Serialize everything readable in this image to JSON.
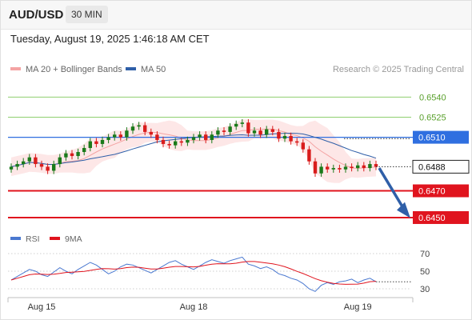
{
  "header": {
    "symbol": "AUD/USD",
    "timeframe": "30 MIN",
    "datetime": "Tuesday, August 19, 2025 1:46:18 AM CET"
  },
  "colors": {
    "bollinger": "#f4a3a3",
    "bollinger_fill": "#fde3e3",
    "ma50": "#2f5fa8",
    "resistance_green": "#8fcf6f",
    "resistance_label": "#5aa02c",
    "pivot_blue": "#2f6fe0",
    "support_red": "#e0141e",
    "current_price_box": "#222222",
    "candle_up": "#1a7a1a",
    "candle_down": "#d91c1c",
    "rsi": "#4a78d0",
    "rsi_ma": "#e0141e",
    "arrow": "#2f5fa8"
  },
  "chart_data": {
    "type": "candlestick",
    "legend": [
      {
        "label": "MA 20 + Bollinger Bands",
        "color": "#f4a3a3"
      },
      {
        "label": "MA 50",
        "color": "#2f5fa8"
      }
    ],
    "watermark": "Research © 2025 Trading Central",
    "ylim": [
      0.6444,
      0.6554
    ],
    "x_labels": [
      {
        "label": "Aug 15",
        "index": 5
      },
      {
        "label": "Aug 18",
        "index": 30
      },
      {
        "label": "Aug 19",
        "index": 57
      }
    ],
    "levels": [
      {
        "value": 0.654,
        "label": "0.6540",
        "kind": "resistance"
      },
      {
        "value": 0.6525,
        "label": "0.6525",
        "kind": "resistance"
      },
      {
        "value": 0.651,
        "label": "0.6510",
        "kind": "pivot"
      },
      {
        "value": 0.647,
        "label": "0.6470",
        "kind": "support"
      },
      {
        "value": 0.645,
        "label": "0.6450",
        "kind": "support"
      }
    ],
    "current_price": {
      "value": 0.6488,
      "label": "0.6488"
    },
    "forecast_arrow": {
      "from": 0.6487,
      "to": 0.6452
    },
    "close": [
      0.6488,
      0.649,
      0.6492,
      0.6495,
      0.649,
      0.6488,
      0.6485,
      0.649,
      0.6495,
      0.6498,
      0.6496,
      0.6499,
      0.6502,
      0.6507,
      0.6505,
      0.6508,
      0.651,
      0.6512,
      0.651,
      0.6515,
      0.6518,
      0.6519,
      0.6514,
      0.6512,
      0.6508,
      0.6505,
      0.6504,
      0.6507,
      0.6506,
      0.6508,
      0.651,
      0.6512,
      0.6508,
      0.6512,
      0.6515,
      0.6514,
      0.6518,
      0.652,
      0.6521,
      0.6513,
      0.6515,
      0.6512,
      0.6516,
      0.6514,
      0.6509,
      0.6511,
      0.6507,
      0.6506,
      0.6501,
      0.6492,
      0.6483,
      0.6488,
      0.6486,
      0.6487,
      0.6486,
      0.6488,
      0.6487,
      0.6489,
      0.6487,
      0.649,
      0.6488
    ],
    "rsi": {
      "legend": [
        {
          "label": "RSI",
          "color": "#4a78d0"
        },
        {
          "label": "9MA",
          "color": "#e0141e"
        }
      ],
      "ylim": [
        20,
        80
      ],
      "ticks": [
        70,
        50,
        30
      ],
      "values": [
        40,
        44,
        48,
        52,
        50,
        46,
        44,
        49,
        54,
        50,
        47,
        52,
        56,
        60,
        57,
        52,
        47,
        50,
        55,
        58,
        57,
        54,
        51,
        48,
        52,
        56,
        60,
        62,
        58,
        55,
        52,
        56,
        60,
        63,
        61,
        59,
        62,
        64,
        66,
        58,
        56,
        53,
        55,
        52,
        47,
        45,
        42,
        40,
        36,
        30,
        27,
        34,
        37,
        35,
        38,
        39,
        41,
        37,
        40,
        42,
        38
      ]
    }
  }
}
